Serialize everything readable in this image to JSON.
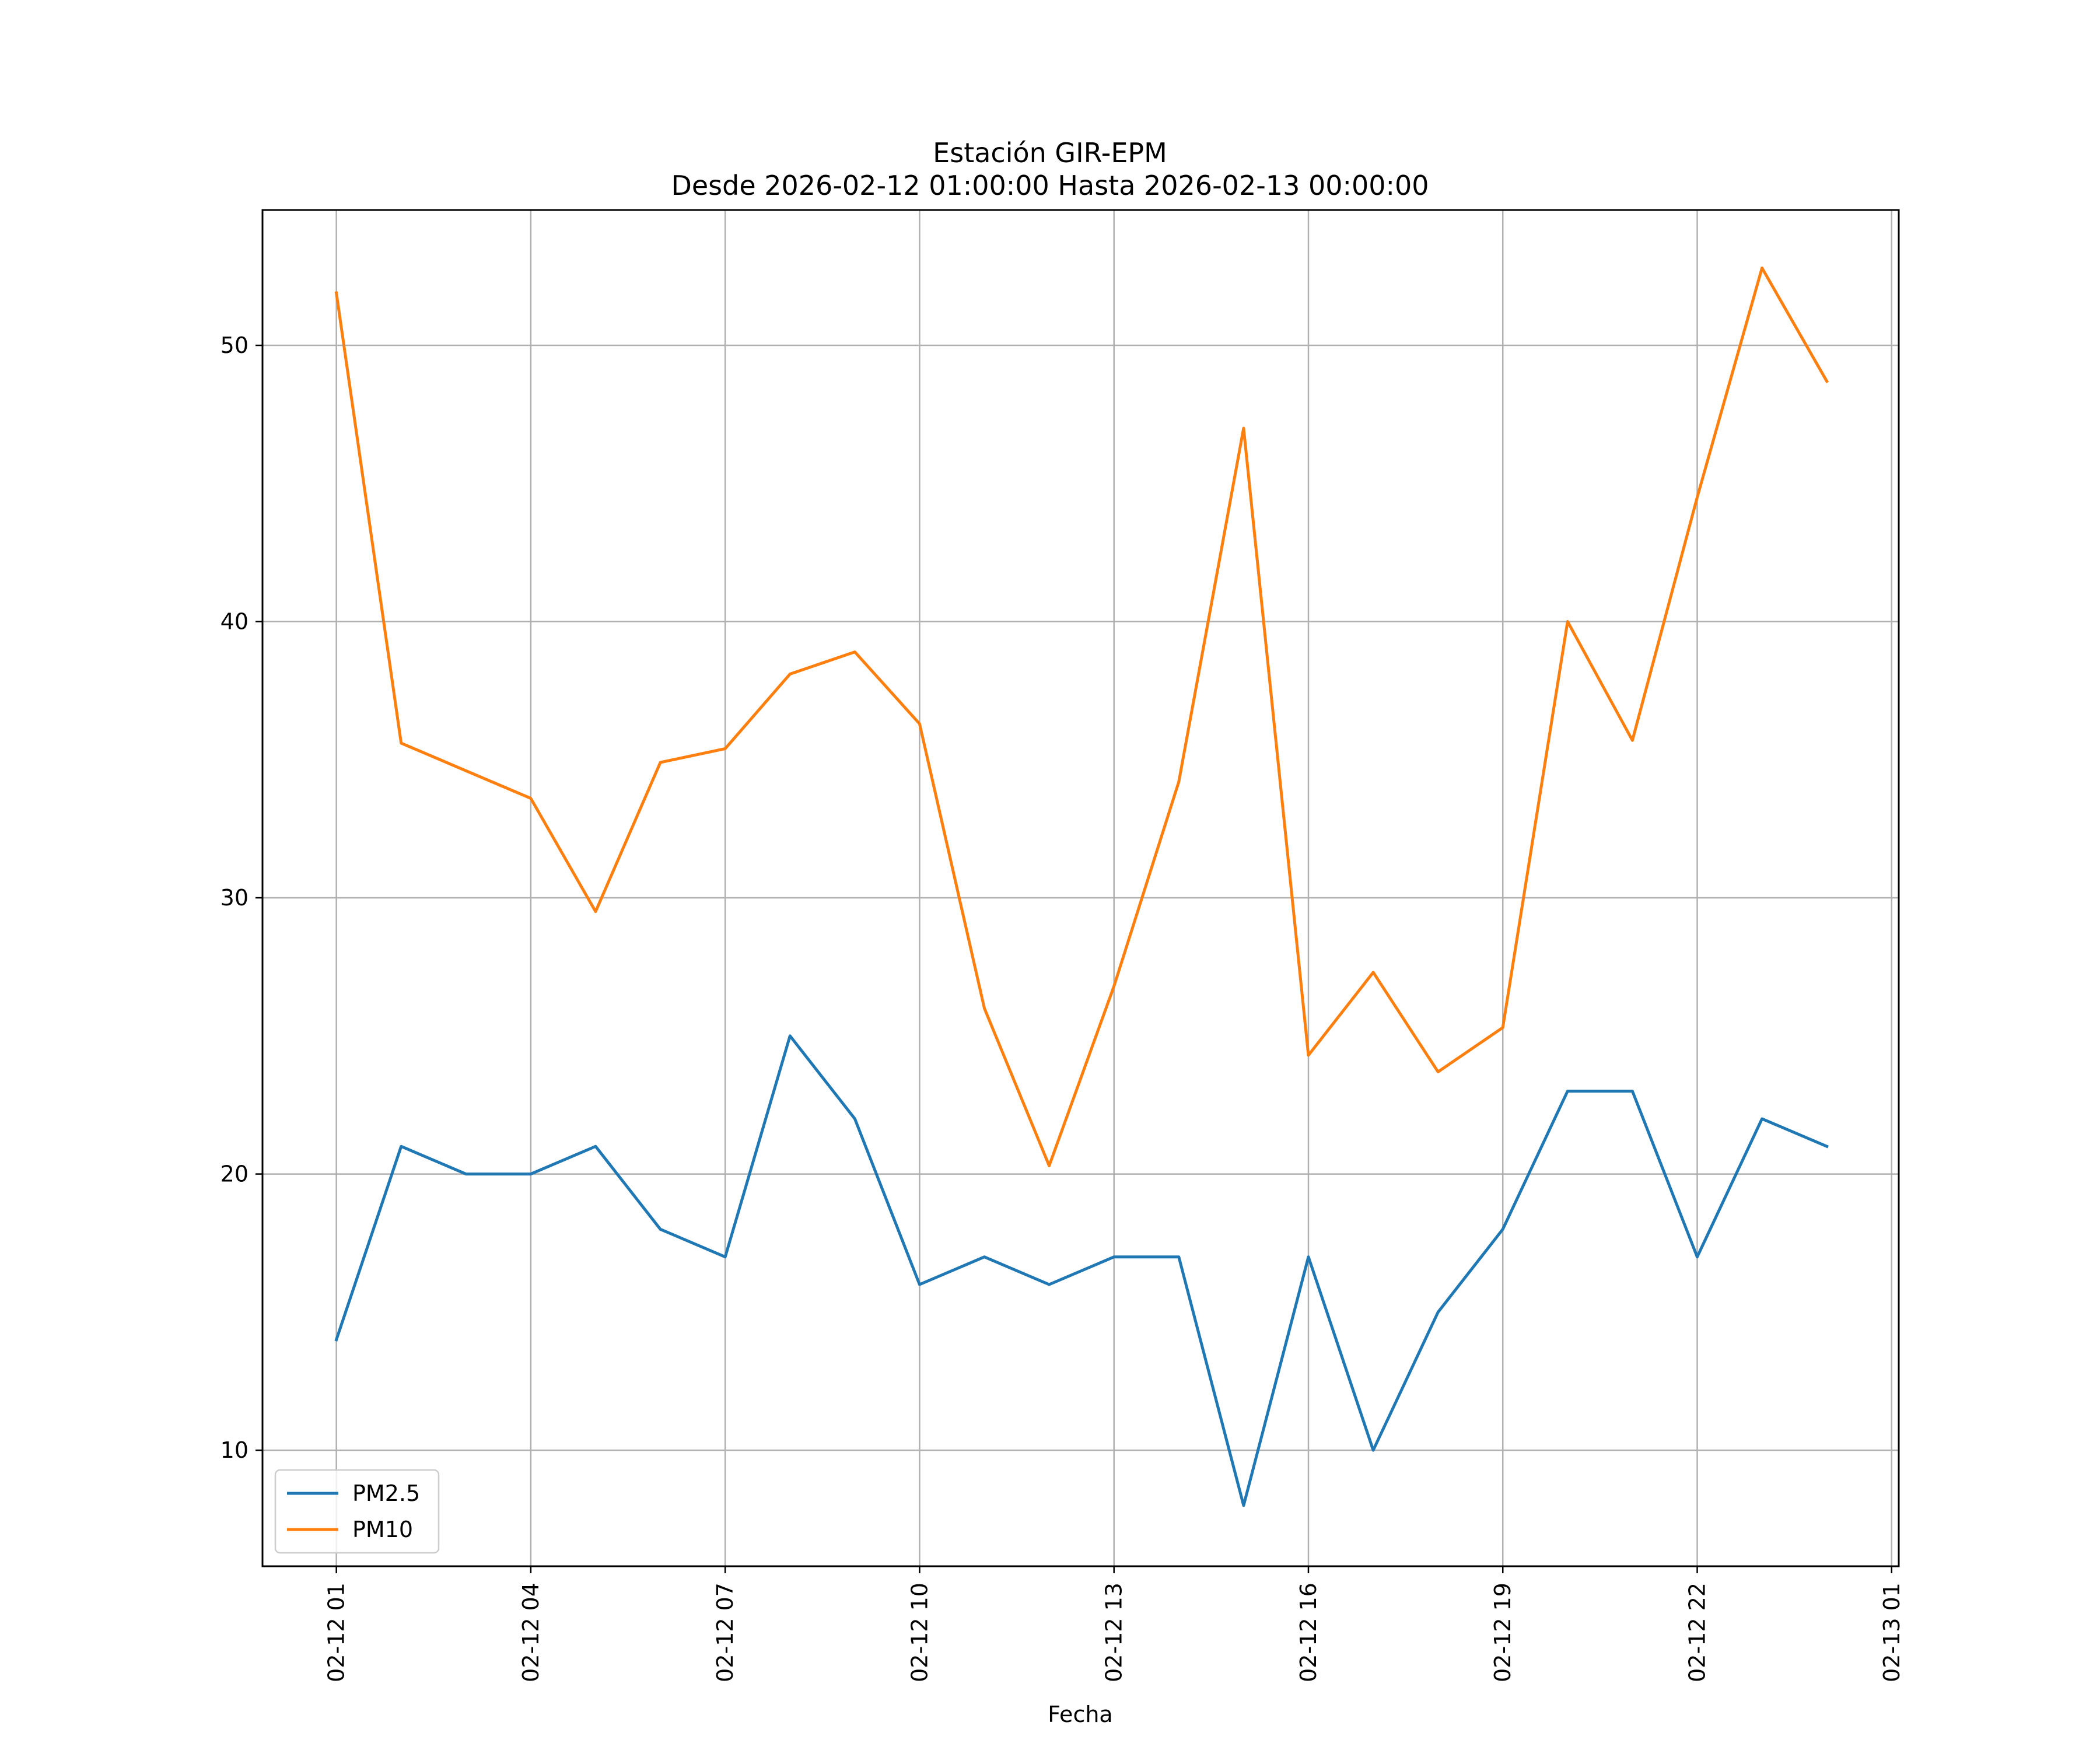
{
  "chart_data": {
    "type": "line",
    "title": "Estación GIR-EPM",
    "subtitle": "Desde 2026-02-12 01:00:00 Hasta 2026-02-13 00:00:00",
    "xlabel": "Fecha",
    "ylabel": "",
    "x": [
      "02-12 01",
      "02-12 02",
      "02-12 03",
      "02-12 04",
      "02-12 05",
      "02-12 06",
      "02-12 07",
      "02-12 08",
      "02-12 09",
      "02-12 10",
      "02-12 11",
      "02-12 12",
      "02-12 13",
      "02-12 14",
      "02-12 15",
      "02-12 16",
      "02-12 17",
      "02-12 18",
      "02-12 19",
      "02-12 20",
      "02-12 21",
      "02-12 22",
      "02-12 23",
      "02-13 00"
    ],
    "x_hours": [
      0,
      1,
      2,
      3,
      4,
      5,
      6,
      7,
      8,
      9,
      10,
      11,
      12,
      13,
      14,
      15,
      16,
      17,
      18,
      19,
      20,
      21,
      22,
      23
    ],
    "series": [
      {
        "name": "PM2.5",
        "color": "#1f77b4",
        "values": [
          14,
          21,
          20,
          20,
          21,
          18,
          17,
          25,
          22,
          16,
          17,
          16,
          17,
          17,
          8,
          17,
          10,
          15,
          18,
          23,
          23,
          17,
          22,
          21
        ]
      },
      {
        "name": "PM10",
        "color": "#ff7f0e",
        "values": [
          51.9,
          35.6,
          34.6,
          33.6,
          29.5,
          34.9,
          35.4,
          38.1,
          38.9,
          36.3,
          26.0,
          20.3,
          26.8,
          34.2,
          47.0,
          24.3,
          27.3,
          23.7,
          25.3,
          40.0,
          35.7,
          44.5,
          52.8,
          48.7
        ]
      }
    ],
    "xticks": [
      {
        "label": "02-12 01",
        "hour": 0
      },
      {
        "label": "02-12 04",
        "hour": 3
      },
      {
        "label": "02-12 07",
        "hour": 6
      },
      {
        "label": "02-12 10",
        "hour": 9
      },
      {
        "label": "02-12 13",
        "hour": 12
      },
      {
        "label": "02-12 16",
        "hour": 15
      },
      {
        "label": "02-12 19",
        "hour": 18
      },
      {
        "label": "02-12 22",
        "hour": 21
      },
      {
        "label": "02-13 01",
        "hour": 24
      }
    ],
    "yticks": [
      10,
      20,
      30,
      40,
      50
    ],
    "xlim": [
      -1.14,
      24.11
    ],
    "ylim": [
      5.8,
      54.9
    ],
    "grid": true,
    "legend": "lower-left"
  }
}
